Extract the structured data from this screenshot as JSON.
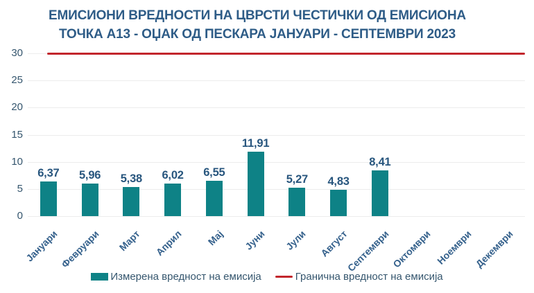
{
  "title": {
    "line1": "ЕМИСИОНИ ВРЕДНОСТИ НА ЦВРСТИ ЧЕСТИЧКИ ОД ЕМИСИОНА",
    "line2": "ТОЧКА А13 - ОЏАК ОД ПЕСКАРА ЈАНУАРИ - СЕПТЕМВРИ 2023"
  },
  "colors": {
    "bar": "#0E8286",
    "limit_line": "#C2262C",
    "title_text": "#2E5C87",
    "value_label_text": "#28567E",
    "axis_text": "#35566E",
    "category_text": "#35618C",
    "gridline": "#ECECEC"
  },
  "chart_data": {
    "type": "bar",
    "title": "ЕМИСИОНИ ВРЕДНОСТИ НА ЦВРСТИ ЧЕСТИЧКИ ОД ЕМИСИОНА ТОЧКА А13 - ОЏАК ОД ПЕСКАРА ЈАНУАРИ - СЕПТЕМВРИ 2023",
    "categories": [
      "Јануари",
      "Февруари",
      "Март",
      "Април",
      "Мај",
      "Јуни",
      "Јули",
      "Август",
      "Септември",
      "Октомври",
      "Ноември",
      "Декември"
    ],
    "series": [
      {
        "name": "Измерена вредност на емисија",
        "type": "bar",
        "values": [
          6.37,
          5.96,
          5.38,
          6.02,
          6.55,
          11.91,
          5.27,
          4.83,
          8.41,
          null,
          null,
          null
        ],
        "value_labels": [
          "6,37",
          "5,96",
          "5,38",
          "6,02",
          "6,55",
          "11,91",
          "5,27",
          "4,83",
          "8,41",
          null,
          null,
          null
        ]
      },
      {
        "name": "Гранична вредност на емисија",
        "type": "line",
        "constant_value": 30
      }
    ],
    "ylim": [
      0,
      30
    ],
    "yticks": [
      0,
      5,
      10,
      15,
      20,
      25,
      30
    ],
    "grid": true,
    "legend_position": "bottom"
  },
  "legend": {
    "items": [
      {
        "label": "Измерена вредност на емисија",
        "swatch": "bar"
      },
      {
        "label": "Гранична вредност на емисија",
        "swatch": "line"
      }
    ]
  }
}
